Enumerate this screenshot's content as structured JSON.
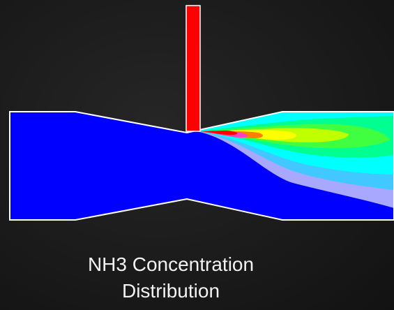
{
  "caption": {
    "lines": [
      "NH3 Concentration",
      "Distribution"
    ]
  }
}
